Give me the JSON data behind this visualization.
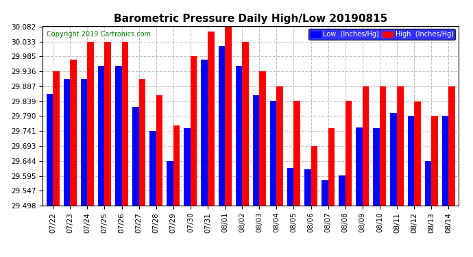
{
  "title": "Barometric Pressure Daily High/Low 20190815",
  "copyright": "Copyright 2019 Cartronics.com",
  "legend_low": "Low  (Inches/Hg)",
  "legend_high": "High  (Inches/Hg)",
  "dates": [
    "07/22",
    "07/23",
    "07/24",
    "07/25",
    "07/26",
    "07/27",
    "07/28",
    "07/29",
    "07/30",
    "07/31",
    "08/01",
    "08/02",
    "08/03",
    "08/04",
    "08/05",
    "08/06",
    "08/07",
    "08/08",
    "08/09",
    "08/10",
    "08/11",
    "08/12",
    "08/13",
    "08/14"
  ],
  "low": [
    29.862,
    29.912,
    29.912,
    29.955,
    29.955,
    29.82,
    29.742,
    29.644,
    29.75,
    29.975,
    30.02,
    29.955,
    29.858,
    29.84,
    29.62,
    29.617,
    29.58,
    29.597,
    29.752,
    29.75,
    29.8,
    29.79,
    29.644,
    29.79
  ],
  "high": [
    29.936,
    29.975,
    30.033,
    30.033,
    30.033,
    29.912,
    29.858,
    29.76,
    29.985,
    30.065,
    30.082,
    30.033,
    29.936,
    29.887,
    29.84,
    29.693,
    29.75,
    29.84,
    29.887,
    29.887,
    29.887,
    29.839,
    29.79,
    29.887
  ],
  "ylim_min": 29.498,
  "ylim_max": 30.082,
  "yticks": [
    29.498,
    29.547,
    29.595,
    29.644,
    29.693,
    29.741,
    29.79,
    29.839,
    29.887,
    29.936,
    29.985,
    30.033,
    30.082
  ],
  "bar_width": 0.38,
  "color_low": "#0000FF",
  "color_high": "#FF0000",
  "background_color": "#FFFFFF",
  "grid_color": "#C0C0C0",
  "title_fontsize": 11,
  "tick_fontsize": 7.5,
  "copyright_fontsize": 7
}
